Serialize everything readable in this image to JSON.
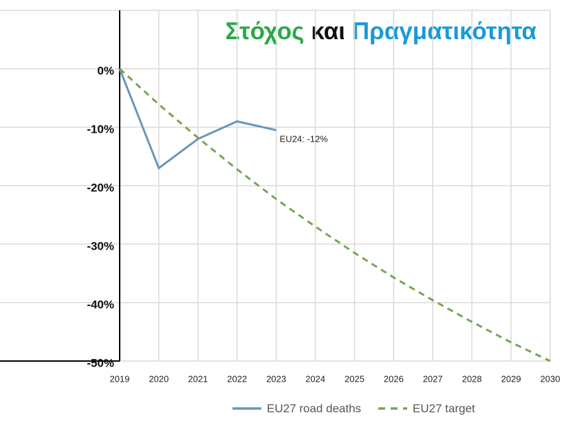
{
  "chart_data": {
    "type": "line",
    "title_parts": [
      {
        "text": "Στόχος",
        "color": "#2aa84a"
      },
      {
        "text": "και",
        "color": "#111111"
      },
      {
        "text": "Πραγματικότητα",
        "color": "#1a9ad6"
      }
    ],
    "x": [
      2019,
      2020,
      2021,
      2022,
      2023,
      2024,
      2025,
      2026,
      2027,
      2028,
      2029,
      2030
    ],
    "series": [
      {
        "name": "EU27 road deaths",
        "color": "#6b95b5",
        "dashed": false,
        "values": [
          0,
          -17,
          -12,
          -9,
          -10.5,
          null,
          null,
          null,
          null,
          null,
          null,
          null
        ]
      },
      {
        "name": "EU27 target",
        "color": "#76a650",
        "dashed": true,
        "values": [
          0,
          -6.1,
          -11.8,
          -17.2,
          -22.3,
          -27,
          -31.5,
          -35.7,
          -39.6,
          -43.3,
          -46.8,
          -50
        ]
      }
    ],
    "annotation": "EU24: -12%",
    "xlim": [
      2016,
      2030
    ],
    "xticks": [
      2019,
      2020,
      2021,
      2022,
      2023,
      2024,
      2025,
      2026,
      2027,
      2028,
      2029,
      2030
    ],
    "ylim": [
      -50,
      10
    ],
    "yticks": [
      {
        "value": 10,
        "label": ""
      },
      {
        "value": 0,
        "label": "0%"
      },
      {
        "value": -10,
        "label": "-10%"
      },
      {
        "value": -20,
        "label": "-20%"
      },
      {
        "value": -30,
        "label": "-30%"
      },
      {
        "value": -40,
        "label": "-40%"
      },
      {
        "value": -50,
        "label": "-50%"
      }
    ],
    "grid": true,
    "legend": "bottom"
  }
}
